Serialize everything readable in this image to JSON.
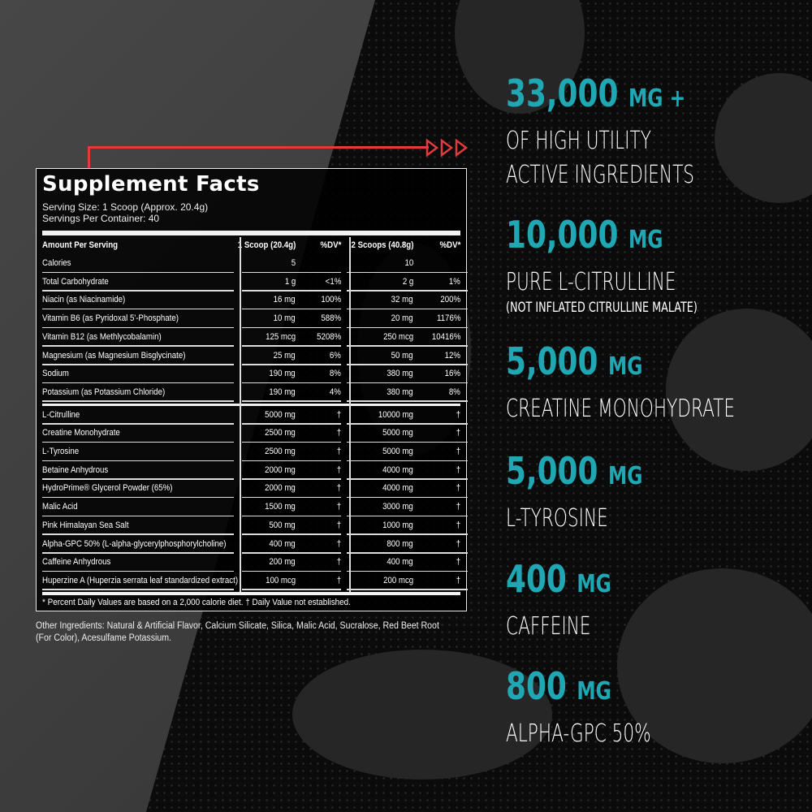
{
  "colors": {
    "accent": "#1fa7b4",
    "arrow": "#e23b3f",
    "background": "#0b0b0b",
    "panel": "#3f3f3f"
  },
  "facts": {
    "title": "Supplement Facts",
    "serving_size": "Serving Size: 1 Scoop (Approx. 20.4g)",
    "servings_per_container": "Servings Per Container: 40",
    "header": [
      "Amount Per Serving",
      "1 Scoop (20.4g)",
      "%DV*",
      "2 Scoops (40.8g)",
      "%DV*"
    ],
    "nutrients": [
      [
        "Calories",
        "5",
        "",
        "10",
        ""
      ],
      [
        "Total Carbohydrate",
        "1 g",
        "<1%",
        "2 g",
        "1%"
      ],
      [
        "Niacin (as Niacinamide)",
        "16 mg",
        "100%",
        "32 mg",
        "200%"
      ],
      [
        "Vitamin B6 (as Pyridoxal 5'-Phosphate)",
        "10 mg",
        "588%",
        "20 mg",
        "1176%"
      ],
      [
        "Vitamin B12 (as Methlycobalamin)",
        "125 mcg",
        "5208%",
        "250 mcg",
        "10416%"
      ],
      [
        "Magnesium (as Magnesium Bisglycinate)",
        "25 mg",
        "6%",
        "50 mg",
        "12%"
      ],
      [
        "Sodium",
        "190 mg",
        "8%",
        "380 mg",
        "16%"
      ],
      [
        "Potassium (as Potassium Chloride)",
        "190 mg",
        "4%",
        "380 mg",
        "8%"
      ]
    ],
    "actives": [
      [
        "L-Citrulline",
        "5000 mg",
        "†",
        "10000 mg",
        "†"
      ],
      [
        "Creatine Monohydrate",
        "2500 mg",
        "†",
        "5000 mg",
        "†"
      ],
      [
        "L-Tyrosine",
        "2500 mg",
        "†",
        "5000 mg",
        "†"
      ],
      [
        "Betaine Anhydrous",
        "2000 mg",
        "†",
        "4000 mg",
        "†"
      ],
      [
        "HydroPrime® Glycerol Powder (65%)",
        "2000 mg",
        "†",
        "4000 mg",
        "†"
      ],
      [
        "Malic Acid",
        "1500 mg",
        "†",
        "3000 mg",
        "†"
      ],
      [
        "Pink Himalayan Sea Salt",
        "500 mg",
        "†",
        "1000 mg",
        "†"
      ],
      [
        "Alpha-GPC 50% (L-alpha-glycerylphosphorylcholine)",
        "400 mg",
        "†",
        "800 mg",
        "†"
      ],
      [
        "Caffeine Anhydrous",
        "200 mg",
        "†",
        "400 mg",
        "†"
      ],
      [
        "Huperzine A (Huperzia serrata leaf standardized extract)",
        "100 mcg",
        "†",
        "200 mcg",
        "†"
      ]
    ],
    "footnote": "* Percent Daily Values are based on a 2,000 calorie diet. † Daily Value not established."
  },
  "other_ingredients": "Other Ingredients: Natural & Artificial Flavor, Calcium Silicate, Silica, Malic Acid, Sucralose, Red Beet Root (For Color), Acesulfame Potassium.",
  "claims": [
    {
      "amount": "33,000",
      "unit": "MG +",
      "lines": [
        "OF HIGH UTILITY",
        "ACTIVE INGREDIENTS"
      ],
      "note": ""
    },
    {
      "amount": "10,000",
      "unit": "MG",
      "lines": [
        "PURE L-CITRULLINE"
      ],
      "note": "(NOT INFLATED CITRULLINE MALATE)"
    },
    {
      "amount": "5,000",
      "unit": "MG",
      "lines": [
        "CREATINE MONOHYDRATE"
      ],
      "note": ""
    },
    {
      "amount": "5,000",
      "unit": "MG",
      "lines": [
        "L-TYROSINE"
      ],
      "note": ""
    },
    {
      "amount": "400",
      "unit": "MG",
      "lines": [
        "CAFFEINE"
      ],
      "note": ""
    },
    {
      "amount": "800",
      "unit": "MG",
      "lines": [
        "ALPHA-GPC 50%"
      ],
      "note": ""
    }
  ]
}
